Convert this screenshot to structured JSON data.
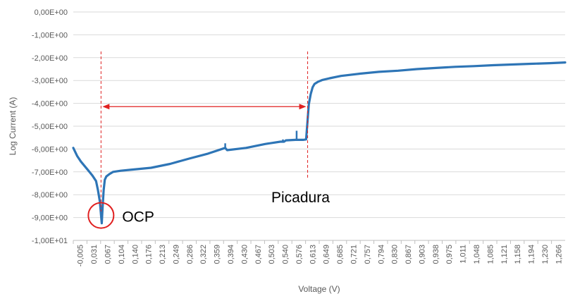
{
  "chart_data": {
    "type": "line",
    "title": "",
    "xlabel": "Voltage (V)",
    "ylabel": "Log Current (A)",
    "grid": "horizontal",
    "legend": "none",
    "series_color": "#2e75b6",
    "annotation_color": "#e02020",
    "ylim": [
      -10,
      0
    ],
    "xlim": [
      -0.005,
      1.29
    ],
    "y_ticks": [
      "0,00E+00",
      "-1,00E+00",
      "-2,00E+00",
      "-3,00E+00",
      "-4,00E+00",
      "-5,00E+00",
      "-6,00E+00",
      "-7,00E+00",
      "-8,00E+00",
      "-9,00E+00",
      "-1,00E+01"
    ],
    "x_ticks": [
      "-0,005",
      "0,031",
      "0,067",
      "0,104",
      "0,140",
      "0,176",
      "0,213",
      "0,249",
      "0,286",
      "0,322",
      "0,359",
      "0,394",
      "0,430",
      "0,467",
      "0,503",
      "0,540",
      "0,576",
      "0,613",
      "0,649",
      "0,685",
      "0,721",
      "0,757",
      "0,794",
      "0,830",
      "0,867",
      "0,903",
      "0,938",
      "0,975",
      "1,011",
      "1,048",
      "1,085",
      "1,121",
      "1,158",
      "1,194",
      "1,230",
      "1,266"
    ],
    "x": [
      -0.005,
      0.005,
      0.015,
      0.025,
      0.035,
      0.045,
      0.055,
      0.06,
      0.065,
      0.07,
      0.072,
      0.075,
      0.078,
      0.082,
      0.09,
      0.1,
      0.12,
      0.15,
      0.2,
      0.25,
      0.3,
      0.35,
      0.395,
      0.4,
      0.45,
      0.5,
      0.54,
      0.55,
      0.555,
      0.58,
      0.6,
      0.608,
      0.612,
      0.615,
      0.62,
      0.625,
      0.63,
      0.64,
      0.65,
      0.67,
      0.7,
      0.75,
      0.8,
      0.85,
      0.9,
      0.95,
      1.0,
      1.05,
      1.1,
      1.15,
      1.2,
      1.25,
      1.29
    ],
    "y": [
      -5.95,
      -6.3,
      -6.55,
      -6.75,
      -6.95,
      -7.15,
      -7.4,
      -7.8,
      -8.3,
      -9.25,
      -8.6,
      -7.8,
      -7.35,
      -7.2,
      -7.1,
      -7.0,
      -6.95,
      -6.9,
      -6.82,
      -6.65,
      -6.42,
      -6.2,
      -5.95,
      -6.05,
      -5.95,
      -5.78,
      -5.68,
      -5.68,
      -5.62,
      -5.6,
      -5.6,
      -5.58,
      -4.7,
      -4.05,
      -3.6,
      -3.3,
      -3.15,
      -3.05,
      -2.98,
      -2.9,
      -2.8,
      -2.7,
      -2.62,
      -2.57,
      -2.5,
      -2.45,
      -2.4,
      -2.37,
      -2.33,
      -2.3,
      -2.27,
      -2.24,
      -2.21
    ],
    "spikes": [
      {
        "x": 0.395,
        "y": -5.75
      },
      {
        "x": 0.583,
        "y": -5.2
      },
      {
        "x": 0.547,
        "y": -5.58
      }
    ],
    "annotations": {
      "ocp_label": "OCP",
      "ocp_x": 0.068,
      "ocp_y": -9.0,
      "picadura_label": "Picadura",
      "picadura_x": 0.612,
      "arrow_y": -4.7
    }
  }
}
